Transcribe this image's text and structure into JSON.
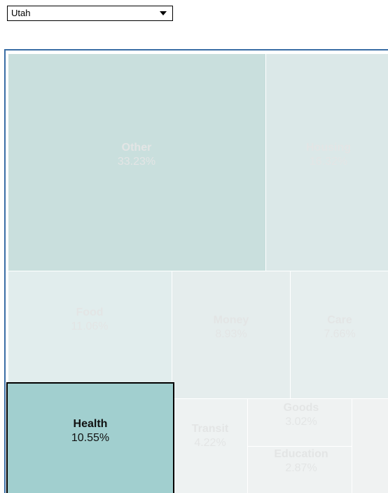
{
  "dropdown": {
    "selected": "Utah"
  },
  "chart_data": {
    "type": "treemap",
    "categories": [
      "Other",
      "Housing",
      "Food",
      "Money",
      "Care",
      "Health",
      "Transit",
      "Goods",
      "Education"
    ],
    "values": [
      33.23,
      16.32,
      11.06,
      8.93,
      7.66,
      10.55,
      4.22,
      3.02,
      2.87
    ],
    "value_labels": [
      "33.23%",
      "16.32%",
      "11.06%",
      "8.93%",
      "7.66%",
      "10.55%",
      "4.22%",
      "3.02%",
      "2.87%"
    ],
    "colors": [
      "#c9dfdd",
      "#dbe8e8",
      "#e1eded",
      "#e5eded",
      "#e6eeee",
      "#a1cfcf",
      "#eef2f2",
      "#eff2f2",
      "#eff2f2"
    ],
    "highlight": "Health"
  }
}
